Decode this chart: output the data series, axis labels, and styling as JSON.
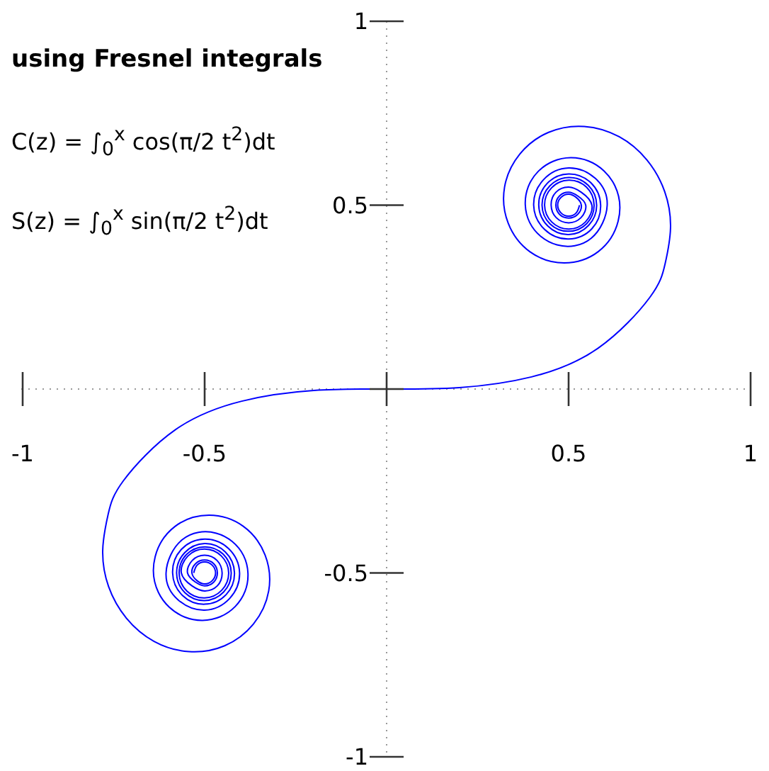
{
  "chart_data": {
    "type": "line",
    "title": "using Fresnel integrals",
    "annotations": [
      "C(z) = ∫$_{0}$$^{x}$ cos(π/2 t$^{2}$)dt",
      "S(z) = ∫$_{0}$$^{x}$ sin(π/2 t$^{2}$)dt"
    ],
    "series": [
      {
        "color": "#0000ff",
        "x": [
          -0.53,
          -0.521,
          -0.5,
          -0.479,
          -0.47,
          -0.479,
          -0.5,
          -0.521,
          -0.535,
          -0.525,
          -0.5,
          -0.475,
          -0.465,
          -0.475,
          -0.5,
          -0.525,
          -0.547,
          -0.534,
          -0.5,
          -0.466,
          -0.452,
          -0.465,
          -0.5,
          -0.535,
          -0.564,
          -0.546,
          -0.5,
          -0.454,
          -0.434,
          -0.453,
          -0.5,
          -0.549,
          -0.57,
          -0.55,
          -0.5,
          -0.449,
          -0.427,
          -0.448,
          -0.5,
          -0.554,
          -0.577,
          -0.555,
          -0.5,
          -0.443,
          -0.418,
          -0.441,
          -0.5,
          -0.561,
          -0.588,
          -0.564,
          -0.5,
          -0.434,
          -0.404,
          -0.431,
          -0.5,
          -0.573,
          -0.606,
          -0.562,
          -0.468,
          -0.393,
          -0.389,
          -0.457,
          -0.555,
          -0.627,
          -0.636,
          -0.582,
          -0.488,
          -0.394,
          -0.334,
          -0.324,
          -0.366,
          -0.445,
          -0.543,
          -0.639,
          -0.715,
          -0.764,
          -0.78,
          -0.765,
          -0.723,
          -0.581,
          -0.398,
          -0.2,
          0,
          0.2,
          0.398,
          0.581,
          0.723,
          0.765,
          0.78,
          0.764,
          0.715,
          0.639,
          0.543,
          0.445,
          0.366,
          0.324,
          0.334,
          0.394,
          0.488,
          0.582,
          0.636,
          0.627,
          0.555,
          0.457,
          0.389,
          0.393,
          0.468,
          0.562,
          0.606,
          0.573,
          0.5,
          0.431,
          0.404,
          0.434,
          0.5,
          0.564,
          0.588,
          0.561,
          0.5,
          0.441,
          0.418,
          0.443,
          0.5,
          0.555,
          0.577,
          0.554,
          0.5,
          0.448,
          0.427,
          0.449,
          0.5,
          0.55,
          0.57,
          0.549,
          0.5,
          0.453,
          0.434,
          0.454,
          0.5,
          0.546,
          0.564,
          0.535,
          0.5,
          0.465,
          0.452,
          0.466,
          0.5,
          0.534,
          0.547,
          0.525,
          0.5,
          0.475,
          0.465,
          0.475,
          0.5,
          0.525,
          0.535,
          0.521,
          0.5,
          0.479,
          0.47,
          0.479,
          0.5,
          0.521,
          0.53
        ],
        "values": [
          -0.5,
          -0.479,
          -0.47,
          -0.479,
          -0.5,
          -0.521,
          -0.53,
          -0.521,
          -0.5,
          -0.475,
          -0.465,
          -0.475,
          -0.5,
          -0.525,
          -0.535,
          -0.525,
          -0.5,
          -0.466,
          -0.452,
          -0.466,
          -0.5,
          -0.535,
          -0.549,
          -0.535,
          -0.5,
          -0.454,
          -0.435,
          -0.454,
          -0.5,
          -0.547,
          -0.568,
          -0.549,
          -0.5,
          -0.45,
          -0.429,
          -0.449,
          -0.5,
          -0.552,
          -0.575,
          -0.554,
          -0.5,
          -0.445,
          -0.42,
          -0.443,
          -0.5,
          -0.559,
          -0.585,
          -0.561,
          -0.5,
          -0.436,
          -0.408,
          -0.434,
          -0.5,
          -0.569,
          -0.601,
          -0.573,
          -0.5,
          -0.41,
          -0.392,
          -0.453,
          -0.55,
          -0.619,
          -0.62,
          -0.553,
          -0.456,
          -0.374,
          -0.343,
          -0.373,
          -0.451,
          -0.549,
          -0.639,
          -0.698,
          -0.714,
          -0.686,
          -0.623,
          -0.537,
          -0.438,
          -0.34,
          -0.249,
          -0.111,
          -0.033,
          -0.004,
          0,
          0.004,
          0.033,
          0.111,
          0.249,
          0.34,
          0.438,
          0.537,
          0.623,
          0.686,
          0.714,
          0.698,
          0.639,
          0.549,
          0.451,
          0.373,
          0.343,
          0.374,
          0.456,
          0.553,
          0.62,
          0.619,
          0.55,
          0.453,
          0.392,
          0.41,
          0.5,
          0.573,
          0.601,
          0.569,
          0.5,
          0.434,
          0.408,
          0.436,
          0.5,
          0.561,
          0.585,
          0.559,
          0.5,
          0.443,
          0.42,
          0.445,
          0.5,
          0.554,
          0.575,
          0.552,
          0.5,
          0.449,
          0.429,
          0.45,
          0.5,
          0.549,
          0.568,
          0.547,
          0.5,
          0.454,
          0.435,
          0.454,
          0.5,
          0.535,
          0.549,
          0.535,
          0.5,
          0.466,
          0.452,
          0.466,
          0.5,
          0.525,
          0.535,
          0.525,
          0.5,
          0.475,
          0.465,
          0.475,
          0.5,
          0.521,
          0.53,
          0.521,
          0.5,
          0.479,
          0.47,
          0.479,
          0.5
        ]
      }
    ],
    "xlim": [
      -1,
      1
    ],
    "ylim": [
      -1,
      1
    ],
    "xticks": [
      -1,
      -0.5,
      {
        "value": 0,
        "label": null
      },
      0.5,
      1
    ],
    "yticks": [
      -1,
      -0.5,
      {
        "value": 0,
        "label": null
      },
      0.5,
      1
    ],
    "marker": "none",
    "line_style": "solid"
  }
}
